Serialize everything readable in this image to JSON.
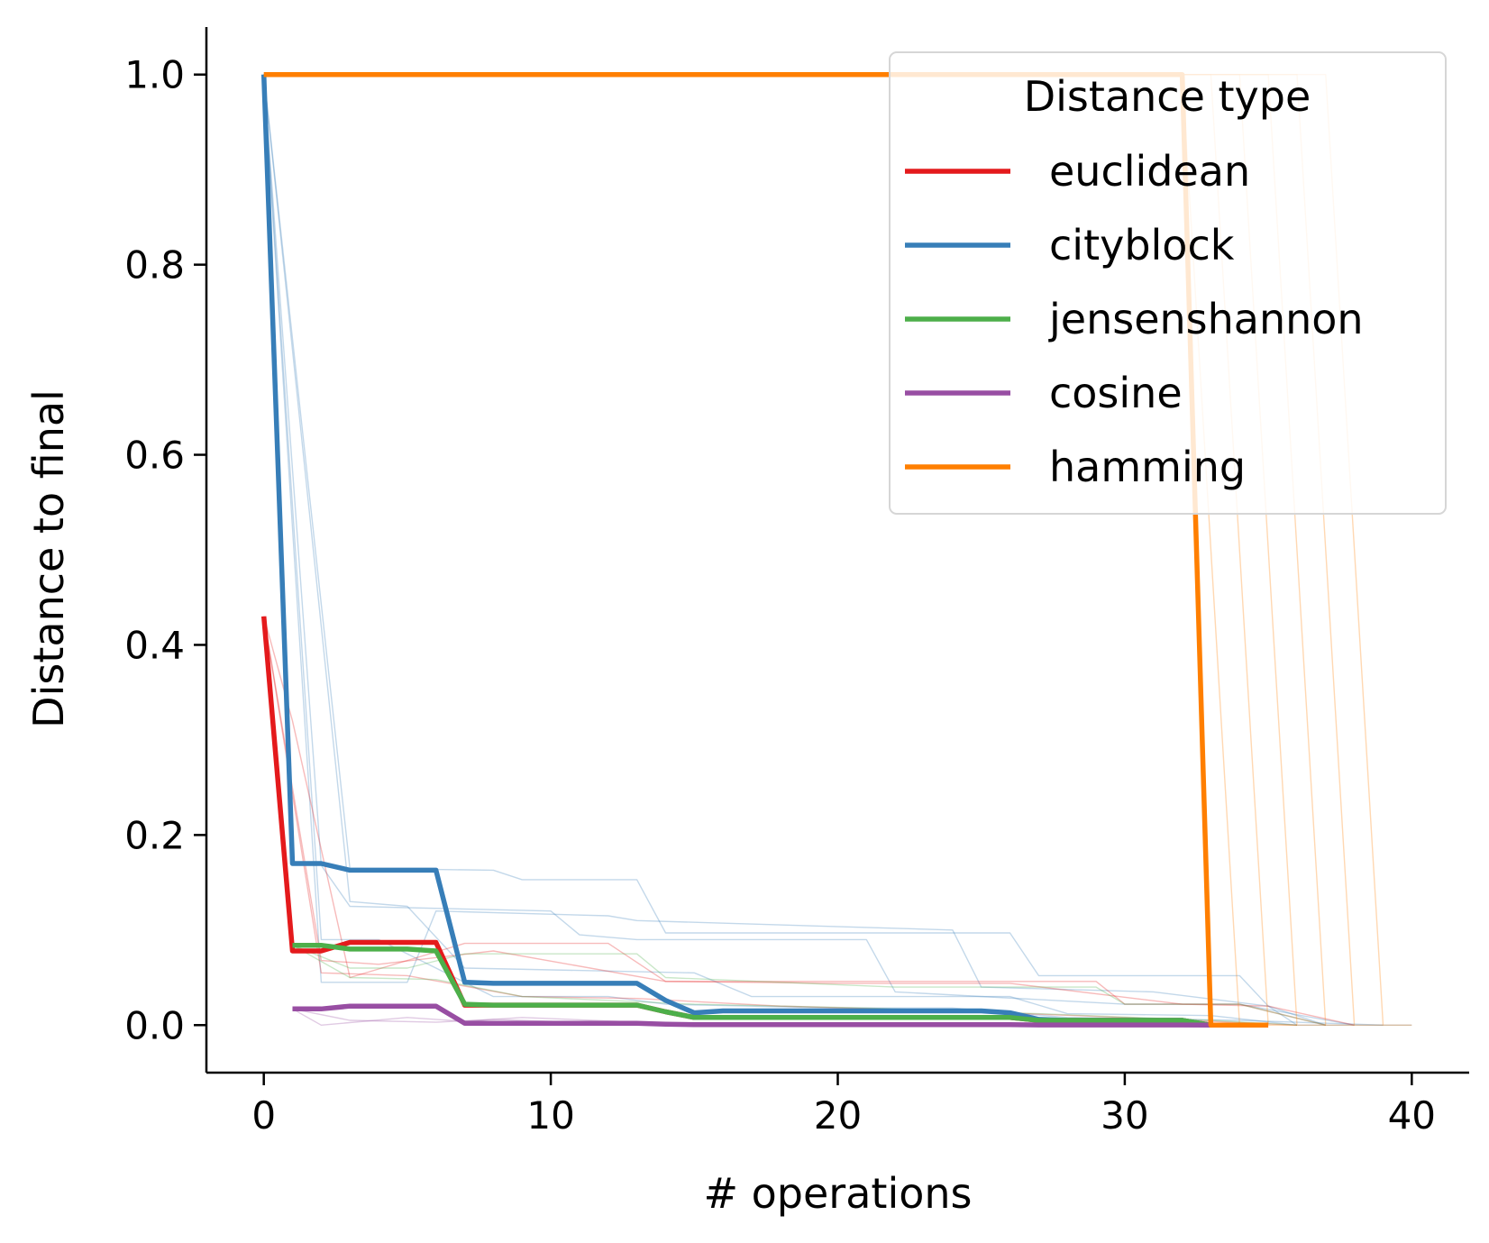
{
  "chart_data": {
    "type": "line",
    "xlabel": "# operations",
    "ylabel": "Distance to final",
    "xlim": [
      -2,
      42
    ],
    "ylim": [
      -0.05,
      1.05
    ],
    "xticks": [
      "0",
      "10",
      "20",
      "30",
      "40"
    ],
    "yticks": [
      "0.0",
      "0.2",
      "0.4",
      "0.6",
      "0.8",
      "1.0"
    ],
    "legend": {
      "title": "Distance type",
      "placement": "upper-right"
    },
    "series": [
      {
        "name": "euclidean",
        "color": "#e41a1c",
        "x": [
          0,
          1,
          2,
          3,
          4,
          5,
          6,
          7,
          8,
          9,
          10,
          11,
          12,
          13,
          14,
          15,
          16,
          17,
          18,
          19,
          20,
          21,
          22,
          23,
          24,
          25,
          26,
          27,
          28,
          29,
          30,
          31,
          32,
          33
        ],
        "y": [
          0.43,
          0.078,
          0.078,
          0.087,
          0.087,
          0.087,
          0.087,
          0.021,
          0.021,
          0.021,
          0.021,
          0.021,
          0.021,
          0.021,
          0.014,
          0.008,
          0.008,
          0.008,
          0.008,
          0.008,
          0.008,
          0.008,
          0.008,
          0.008,
          0.008,
          0.008,
          0.008,
          0.005,
          0.005,
          0.005,
          0.005,
          0.005,
          0.005,
          0.0
        ]
      },
      {
        "name": "cityblock",
        "color": "#377eb8",
        "x": [
          0,
          1,
          2,
          3,
          4,
          5,
          6,
          7,
          8,
          9,
          10,
          11,
          12,
          13,
          14,
          15,
          16,
          17,
          18,
          19,
          20,
          21,
          22,
          23,
          24,
          25,
          26,
          27,
          28,
          29,
          30,
          31,
          32,
          33
        ],
        "y": [
          1.0,
          0.17,
          0.17,
          0.163,
          0.163,
          0.163,
          0.163,
          0.045,
          0.044,
          0.044,
          0.044,
          0.044,
          0.044,
          0.044,
          0.026,
          0.013,
          0.015,
          0.015,
          0.015,
          0.015,
          0.015,
          0.015,
          0.015,
          0.015,
          0.015,
          0.015,
          0.013,
          0.006,
          0.005,
          0.005,
          0.005,
          0.005,
          0.005,
          0.0
        ]
      },
      {
        "name": "jensenshannon",
        "color": "#4daf4a",
        "x": [
          1,
          2,
          3,
          4,
          5,
          6,
          7,
          8,
          9,
          10,
          11,
          12,
          13,
          14,
          15,
          16,
          17,
          18,
          19,
          20,
          21,
          22,
          23,
          24,
          25,
          26,
          27,
          28,
          29,
          30,
          31,
          32,
          33
        ],
        "y": [
          0.084,
          0.084,
          0.08,
          0.08,
          0.08,
          0.078,
          0.022,
          0.021,
          0.021,
          0.021,
          0.021,
          0.021,
          0.021,
          0.014,
          0.008,
          0.008,
          0.008,
          0.008,
          0.008,
          0.008,
          0.008,
          0.008,
          0.008,
          0.008,
          0.008,
          0.008,
          0.005,
          0.005,
          0.005,
          0.005,
          0.005,
          0.005,
          0.0
        ]
      },
      {
        "name": "cosine",
        "color": "#984ea3",
        "x": [
          1,
          2,
          3,
          4,
          5,
          6,
          7,
          8,
          9,
          10,
          11,
          12,
          13,
          14,
          15,
          16,
          17,
          18,
          19,
          20,
          21,
          22,
          23,
          24,
          25,
          26,
          27,
          28,
          29,
          30,
          31,
          32,
          33
        ],
        "y": [
          0.017,
          0.017,
          0.02,
          0.02,
          0.02,
          0.02,
          0.002,
          0.002,
          0.002,
          0.002,
          0.002,
          0.002,
          0.002,
          0.001,
          0.0005,
          0.0005,
          0.0005,
          0.0005,
          0.0005,
          0.0005,
          0.0005,
          0.0005,
          0.0005,
          0.0005,
          0.0005,
          0.0005,
          0.0002,
          0.0002,
          0.0002,
          0.0002,
          0.0002,
          0.0002,
          0.0
        ]
      },
      {
        "name": "hamming",
        "color": "#ff7f00",
        "x": [
          0,
          32,
          33,
          35
        ],
        "y": [
          1.0,
          1.0,
          0.0,
          0.0
        ]
      }
    ],
    "background_traces": [
      {
        "color": "#377eb8",
        "x": [
          0,
          3,
          8,
          9,
          13,
          14,
          26,
          27,
          31,
          34,
          35,
          36,
          40
        ],
        "y": [
          1.0,
          0.165,
          0.163,
          0.153,
          0.153,
          0.097,
          0.097,
          0.052,
          0.052,
          0.052,
          0.02,
          0.0,
          0.0
        ]
      },
      {
        "color": "#377eb8",
        "x": [
          0,
          2,
          3,
          10,
          11,
          13,
          21,
          22,
          30,
          34,
          38
        ],
        "y": [
          1.0,
          0.168,
          0.125,
          0.12,
          0.095,
          0.09,
          0.09,
          0.035,
          0.022,
          0.022,
          0.0
        ]
      },
      {
        "color": "#377eb8",
        "x": [
          0,
          2,
          5,
          6,
          12,
          13,
          24,
          25,
          31,
          35,
          37
        ],
        "y": [
          1.0,
          0.045,
          0.045,
          0.12,
          0.115,
          0.11,
          0.1,
          0.04,
          0.035,
          0.02,
          0.0
        ]
      },
      {
        "color": "#377eb8",
        "x": [
          0,
          3,
          5,
          7,
          15,
          17,
          26,
          28,
          33,
          36
        ],
        "y": [
          1.0,
          0.13,
          0.125,
          0.06,
          0.055,
          0.03,
          0.03,
          0.012,
          0.01,
          0.0
        ]
      },
      {
        "color": "#377eb8",
        "x": [
          0,
          2,
          4,
          8,
          12,
          14,
          20,
          24,
          28,
          34,
          39
        ],
        "y": [
          1.0,
          0.09,
          0.09,
          0.03,
          0.03,
          0.022,
          0.018,
          0.018,
          0.008,
          0.005,
          0.0
        ]
      },
      {
        "color": "#e41a1c",
        "x": [
          0,
          1,
          3,
          7,
          12,
          14,
          29,
          30,
          34,
          37
        ],
        "y": [
          0.43,
          0.32,
          0.05,
          0.086,
          0.086,
          0.046,
          0.046,
          0.022,
          0.022,
          0.0
        ]
      },
      {
        "color": "#e41a1c",
        "x": [
          0,
          2,
          4,
          8,
          14,
          20,
          26,
          32,
          35,
          38
        ],
        "y": [
          0.43,
          0.068,
          0.064,
          0.078,
          0.046,
          0.044,
          0.044,
          0.022,
          0.02,
          0.0
        ]
      },
      {
        "color": "#e41a1c",
        "x": [
          0,
          2,
          5,
          9,
          13,
          18,
          24,
          30,
          36
        ],
        "y": [
          0.43,
          0.055,
          0.052,
          0.03,
          0.028,
          0.02,
          0.015,
          0.008,
          0.0
        ]
      },
      {
        "color": "#4daf4a",
        "x": [
          1,
          3,
          5,
          7,
          13,
          14,
          22,
          29,
          30,
          34,
          37
        ],
        "y": [
          0.084,
          0.06,
          0.06,
          0.075,
          0.075,
          0.05,
          0.04,
          0.04,
          0.022,
          0.022,
          0.0
        ]
      },
      {
        "color": "#4daf4a",
        "x": [
          1,
          3,
          6,
          9,
          15,
          21,
          27,
          33,
          36
        ],
        "y": [
          0.084,
          0.05,
          0.048,
          0.03,
          0.022,
          0.018,
          0.012,
          0.005,
          0.0
        ]
      },
      {
        "color": "#984ea3",
        "x": [
          1,
          2,
          5,
          7,
          9,
          14,
          20,
          27,
          34
        ],
        "y": [
          0.017,
          0.0,
          0.008,
          0.004,
          0.008,
          0.002,
          0.001,
          0.0005,
          0.0
        ]
      },
      {
        "color": "#984ea3",
        "x": [
          1,
          3,
          6,
          8,
          12,
          16,
          24,
          30,
          35
        ],
        "y": [
          0.017,
          0.005,
          0.003,
          0.006,
          0.002,
          0.001,
          0.0005,
          0.0002,
          0.0
        ]
      },
      {
        "color": "#ff7f00",
        "x": [
          0,
          32,
          34,
          35
        ],
        "y": [
          1.0,
          1.0,
          0.0,
          0.0
        ]
      },
      {
        "color": "#ff7f00",
        "x": [
          0,
          33,
          35,
          36
        ],
        "y": [
          1.0,
          1.0,
          0.0,
          0.0
        ]
      },
      {
        "color": "#ff7f00",
        "x": [
          0,
          34,
          36,
          37
        ],
        "y": [
          1.0,
          1.0,
          0.0,
          0.0
        ]
      },
      {
        "color": "#ff7f00",
        "x": [
          0,
          35,
          37,
          38
        ],
        "y": [
          1.0,
          1.0,
          0.0,
          0.0
        ]
      },
      {
        "color": "#ff7f00",
        "x": [
          0,
          36,
          38,
          39
        ],
        "y": [
          1.0,
          1.0,
          0.0,
          0.0
        ]
      },
      {
        "color": "#ff7f00",
        "x": [
          0,
          37,
          39,
          40
        ],
        "y": [
          1.0,
          1.0,
          0.0,
          0.0
        ]
      }
    ]
  }
}
